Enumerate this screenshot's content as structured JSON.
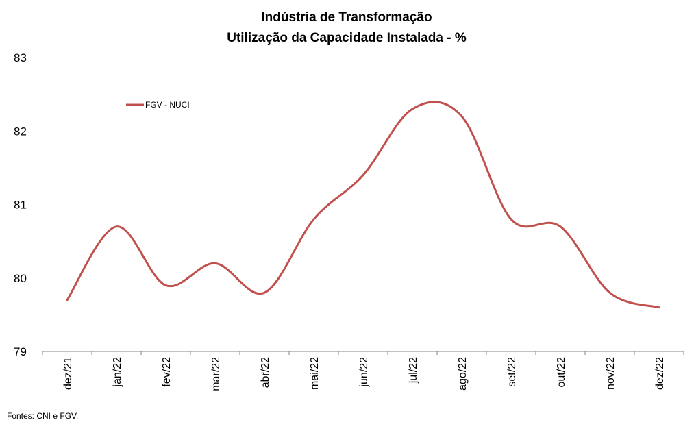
{
  "chart_data": {
    "type": "line",
    "title": [
      "Indústria de Transformação",
      "Utilização da Capacidade Instalada - %"
    ],
    "xlabel": "",
    "ylabel": "",
    "categories": [
      "dez/21",
      "jan/22",
      "fev/22",
      "mar/22",
      "abr/22",
      "mai/22",
      "jun/22",
      "jul/22",
      "ago/22",
      "set/22",
      "out/22",
      "nov/22",
      "dez/22"
    ],
    "series": [
      {
        "name": "FGV - NUCI",
        "color": "#c0504d",
        "values": [
          79.7,
          80.7,
          79.9,
          80.2,
          79.8,
          80.8,
          81.4,
          82.3,
          82.2,
          80.8,
          80.7,
          79.8,
          79.6
        ]
      }
    ],
    "ylim": [
      79,
      83
    ],
    "yticks": [
      "79",
      "80",
      "81",
      "82",
      "83"
    ],
    "grid": false,
    "legend_position": "top-left",
    "smooth": true
  },
  "source_note": "Fontes: CNI e FGV."
}
